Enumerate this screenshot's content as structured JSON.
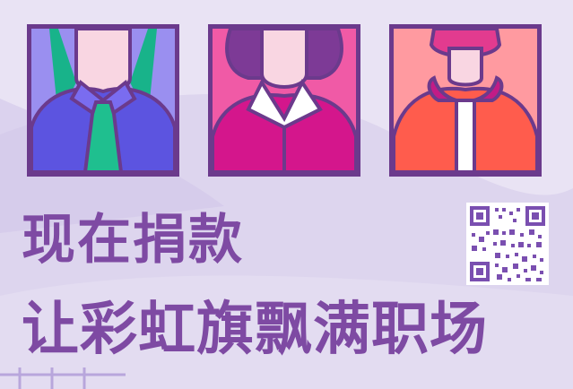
{
  "headline": {
    "line1": "现在捐款",
    "line2": "让彩虹旗飘满职场"
  },
  "colors": {
    "background": "#e9e3f4",
    "wave": "#d6cdea",
    "frame": "#6b3a8c",
    "text": "#7e4aa3",
    "panel1_bg": "#9a8ff0",
    "panel2_bg": "#f05aa6",
    "panel3_bg": "#ff9aa0"
  },
  "panels": [
    {
      "icon": "businessman-green-tie-icon"
    },
    {
      "icon": "woman-white-collar-icon"
    },
    {
      "icon": "bearded-man-hoodie-icon"
    }
  ],
  "qr": {
    "icon": "qr-code-icon"
  }
}
